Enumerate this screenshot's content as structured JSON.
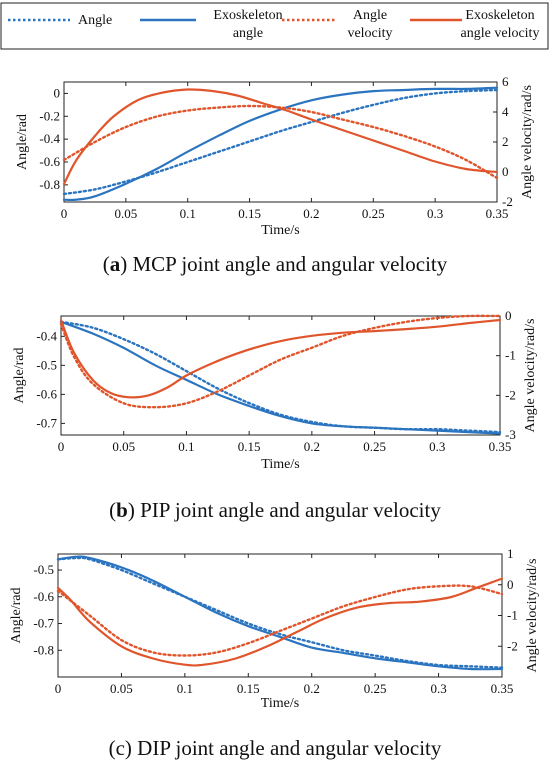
{
  "legend": {
    "position": "top",
    "entries": [
      {
        "label": [
          "Angle"
        ],
        "color": "#2a74c0",
        "style": "dotted"
      },
      {
        "label": [
          "Exoskeleton",
          "angle"
        ],
        "color": "#2a74c0",
        "style": "solid"
      },
      {
        "label": [
          "Angle",
          "velocity"
        ],
        "color": "#e0552b",
        "style": "dotted"
      },
      {
        "label": [
          "Exoskeleton",
          "angle velocity"
        ],
        "color": "#e0552b",
        "style": "solid"
      }
    ]
  },
  "colors": {
    "angle": "#2a74c0",
    "velocity": "#e0552b"
  },
  "chart_data": [
    {
      "type": "line",
      "caption_letter": "a",
      "caption_bold": true,
      "caption_text": "MCP joint angle and angular velocity",
      "xlabel": "Time/s",
      "ylabel_left": "Angle/rad",
      "ylabel_right": "Angle velocity/rad/s",
      "xlim": [
        0,
        0.35
      ],
      "ylim_left": [
        -0.95,
        0.1
      ],
      "ylim_right": [
        -2,
        6
      ],
      "xticks": [
        0,
        0.05,
        0.1,
        0.15,
        0.2,
        0.25,
        0.3,
        0.35
      ],
      "xtick_labels": [
        "0",
        "0.05",
        "0.1",
        "0.15",
        "0.2",
        "0.25",
        "0.3",
        "0.35"
      ],
      "yticks_left": [
        -0.8,
        -0.6,
        -0.4,
        -0.2,
        0
      ],
      "yticks_left_labels": [
        "-0.8",
        "-0.6",
        "-0.4",
        "-0.2",
        "0"
      ],
      "yticks_right": [
        -2,
        0,
        2,
        4,
        6
      ],
      "yticks_right_labels": [
        "-2",
        "0",
        "2",
        "4",
        "6"
      ],
      "grid": false,
      "series": [
        {
          "name": "Angle",
          "axis": "left",
          "style": "dotted",
          "x": [
            0,
            0.025,
            0.05,
            0.075,
            0.1,
            0.125,
            0.15,
            0.175,
            0.2,
            0.225,
            0.25,
            0.275,
            0.3,
            0.325,
            0.35
          ],
          "y": [
            -0.88,
            -0.84,
            -0.77,
            -0.69,
            -0.6,
            -0.51,
            -0.42,
            -0.33,
            -0.25,
            -0.17,
            -0.1,
            -0.04,
            0.0,
            0.02,
            0.03
          ]
        },
        {
          "name": "Exoskeleton angle",
          "axis": "left",
          "style": "solid",
          "x": [
            0,
            0.01,
            0.025,
            0.05,
            0.075,
            0.1,
            0.125,
            0.15,
            0.175,
            0.2,
            0.225,
            0.25,
            0.275,
            0.3,
            0.325,
            0.35
          ],
          "y": [
            -0.93,
            -0.93,
            -0.9,
            -0.79,
            -0.66,
            -0.51,
            -0.37,
            -0.24,
            -0.14,
            -0.06,
            -0.01,
            0.02,
            0.03,
            0.04,
            0.04,
            0.05
          ]
        },
        {
          "name": "Angle velocity",
          "axis": "right",
          "style": "dotted",
          "x": [
            0,
            0.025,
            0.05,
            0.075,
            0.1,
            0.125,
            0.15,
            0.175,
            0.2,
            0.225,
            0.25,
            0.275,
            0.3,
            0.325,
            0.35
          ],
          "y": [
            0.8,
            2.0,
            3.0,
            3.7,
            4.1,
            4.3,
            4.4,
            4.3,
            4.0,
            3.5,
            3.0,
            2.4,
            1.7,
            0.8,
            -0.4
          ]
        },
        {
          "name": "Exoskeleton angle velocity",
          "axis": "right",
          "style": "solid",
          "x": [
            0,
            0.01,
            0.025,
            0.04,
            0.06,
            0.08,
            0.1,
            0.12,
            0.14,
            0.16,
            0.18,
            0.2,
            0.225,
            0.25,
            0.275,
            0.3,
            0.325,
            0.35
          ],
          "y": [
            -0.8,
            0.8,
            2.4,
            3.7,
            4.8,
            5.3,
            5.5,
            5.4,
            5.1,
            4.6,
            4.1,
            3.5,
            2.8,
            2.1,
            1.4,
            0.7,
            0.2,
            0.0
          ]
        }
      ]
    },
    {
      "type": "line",
      "caption_letter": "b",
      "caption_bold": true,
      "caption_text": "PIP joint angle and angular velocity",
      "xlabel": "Time/s",
      "ylabel_left": "Angle/rad",
      "ylabel_right": "Angle velocity/rad/s",
      "xlim": [
        0,
        0.35
      ],
      "ylim_left": [
        -0.74,
        -0.33
      ],
      "ylim_right": [
        -3,
        0
      ],
      "xticks": [
        0,
        0.05,
        0.1,
        0.15,
        0.2,
        0.25,
        0.3,
        0.35
      ],
      "xtick_labels": [
        "0",
        "0.05",
        "0.1",
        "0.15",
        "0.2",
        "0.25",
        "0.3",
        "0.35"
      ],
      "yticks_left": [
        -0.7,
        -0.6,
        -0.5,
        -0.4
      ],
      "yticks_left_labels": [
        "-0.7",
        "-0.6",
        "-0.5",
        "-0.4"
      ],
      "yticks_right": [
        -3,
        -2,
        -1,
        0
      ],
      "yticks_right_labels": [
        "-3",
        "-2",
        "-1",
        "0"
      ],
      "grid": false,
      "series": [
        {
          "name": "Angle",
          "axis": "left",
          "style": "dotted",
          "x": [
            0,
            0.025,
            0.05,
            0.075,
            0.1,
            0.125,
            0.15,
            0.175,
            0.2,
            0.225,
            0.25,
            0.275,
            0.3,
            0.325,
            0.35
          ],
          "y": [
            -0.35,
            -0.37,
            -0.41,
            -0.46,
            -0.52,
            -0.58,
            -0.63,
            -0.67,
            -0.695,
            -0.71,
            -0.715,
            -0.72,
            -0.72,
            -0.725,
            -0.73
          ]
        },
        {
          "name": "Exoskeleton angle",
          "axis": "left",
          "style": "solid",
          "x": [
            0,
            0.025,
            0.05,
            0.075,
            0.1,
            0.125,
            0.15,
            0.175,
            0.2,
            0.225,
            0.25,
            0.275,
            0.3,
            0.325,
            0.35
          ],
          "y": [
            -0.35,
            -0.39,
            -0.44,
            -0.5,
            -0.55,
            -0.6,
            -0.64,
            -0.675,
            -0.7,
            -0.71,
            -0.715,
            -0.72,
            -0.725,
            -0.73,
            -0.735
          ]
        },
        {
          "name": "Angle velocity",
          "axis": "right",
          "style": "dotted",
          "x": [
            0,
            0.01,
            0.025,
            0.05,
            0.075,
            0.1,
            0.125,
            0.15,
            0.175,
            0.2,
            0.225,
            0.25,
            0.275,
            0.3,
            0.325,
            0.35
          ],
          "y": [
            -0.2,
            -1.0,
            -1.7,
            -2.2,
            -2.3,
            -2.2,
            -1.9,
            -1.5,
            -1.1,
            -0.8,
            -0.5,
            -0.3,
            -0.15,
            -0.05,
            0.0,
            0.0
          ]
        },
        {
          "name": "Exoskeleton angle velocity",
          "axis": "right",
          "style": "solid",
          "x": [
            0,
            0.01,
            0.025,
            0.04,
            0.055,
            0.07,
            0.085,
            0.1,
            0.12,
            0.14,
            0.16,
            0.18,
            0.2,
            0.225,
            0.25,
            0.275,
            0.3,
            0.325,
            0.35
          ],
          "y": [
            -0.1,
            -0.9,
            -1.6,
            -1.95,
            -2.05,
            -2.0,
            -1.8,
            -1.5,
            -1.2,
            -0.95,
            -0.75,
            -0.6,
            -0.5,
            -0.42,
            -0.38,
            -0.33,
            -0.27,
            -0.18,
            -0.1
          ]
        }
      ]
    },
    {
      "type": "line",
      "caption_letter": "c",
      "caption_bold": false,
      "caption_text": "DIP joint angle and angular velocity",
      "xlabel": "Time/s",
      "ylabel_left": "Angle/rad",
      "ylabel_right": "Angle velocity/rad/s",
      "xlim": [
        0,
        0.35
      ],
      "ylim_left": [
        -0.9,
        -0.44
      ],
      "ylim_right": [
        -3,
        1
      ],
      "xticks": [
        0,
        0.05,
        0.1,
        0.15,
        0.2,
        0.25,
        0.3,
        0.35
      ],
      "xtick_labels": [
        "0",
        "0.05",
        "0.1",
        "0.15",
        "0.2",
        "0.25",
        "0.3",
        "0.35"
      ],
      "yticks_left": [
        -0.8,
        -0.7,
        -0.6,
        -0.5
      ],
      "yticks_left_labels": [
        "-0.8",
        "-0.7",
        "-0.6",
        "-0.5"
      ],
      "yticks_right": [
        -2,
        -1,
        0,
        1
      ],
      "yticks_right_labels": [
        "-2",
        "-1",
        "0",
        "1"
      ],
      "grid": false,
      "series": [
        {
          "name": "Angle",
          "axis": "left",
          "style": "dotted",
          "x": [
            0,
            0.015,
            0.025,
            0.05,
            0.075,
            0.1,
            0.125,
            0.15,
            0.175,
            0.2,
            0.225,
            0.25,
            0.275,
            0.3,
            0.325,
            0.35
          ],
          "y": [
            -0.46,
            -0.455,
            -0.46,
            -0.5,
            -0.55,
            -0.6,
            -0.65,
            -0.7,
            -0.74,
            -0.77,
            -0.8,
            -0.82,
            -0.84,
            -0.855,
            -0.86,
            -0.865
          ]
        },
        {
          "name": "Exoskeleton angle",
          "axis": "left",
          "style": "solid",
          "x": [
            0,
            0.015,
            0.025,
            0.05,
            0.075,
            0.1,
            0.125,
            0.15,
            0.175,
            0.2,
            0.225,
            0.25,
            0.275,
            0.3,
            0.325,
            0.35
          ],
          "y": [
            -0.46,
            -0.45,
            -0.455,
            -0.49,
            -0.54,
            -0.6,
            -0.66,
            -0.71,
            -0.75,
            -0.79,
            -0.81,
            -0.83,
            -0.845,
            -0.86,
            -0.87,
            -0.87
          ]
        },
        {
          "name": "Angle velocity",
          "axis": "right",
          "style": "dotted",
          "x": [
            0,
            0.025,
            0.05,
            0.075,
            0.1,
            0.125,
            0.15,
            0.175,
            0.2,
            0.225,
            0.25,
            0.275,
            0.3,
            0.325,
            0.35
          ],
          "y": [
            -0.2,
            -1.0,
            -1.8,
            -2.2,
            -2.3,
            -2.2,
            -1.9,
            -1.5,
            -1.1,
            -0.7,
            -0.4,
            -0.15,
            -0.05,
            -0.05,
            -0.3
          ]
        },
        {
          "name": "Exoskeleton angle velocity",
          "axis": "right",
          "style": "solid",
          "x": [
            0,
            0.01,
            0.025,
            0.05,
            0.075,
            0.1,
            0.115,
            0.14,
            0.165,
            0.19,
            0.21,
            0.235,
            0.26,
            0.285,
            0.31,
            0.33,
            0.35
          ],
          "y": [
            -0.1,
            -0.5,
            -1.2,
            -2.0,
            -2.4,
            -2.6,
            -2.6,
            -2.4,
            -2.0,
            -1.5,
            -1.1,
            -0.75,
            -0.6,
            -0.55,
            -0.4,
            -0.1,
            0.2
          ]
        }
      ]
    }
  ]
}
